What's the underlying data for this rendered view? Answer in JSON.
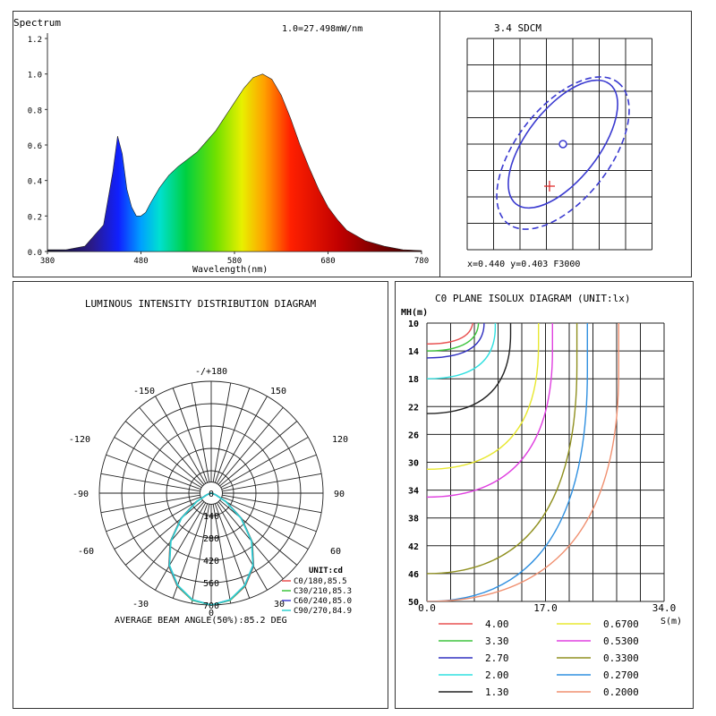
{
  "spectrum": {
    "title": "Spectrum",
    "scale_note": "1.0=27.498mW/nm",
    "xlabel": "Wavelength(nm)",
    "x_ticks": [
      "380",
      "480",
      "580",
      "680",
      "780"
    ],
    "y_ticks": [
      "0.0",
      "0.2",
      "0.4",
      "0.6",
      "0.8",
      "1.0",
      "1.2"
    ]
  },
  "sdcm": {
    "title": "3.4 SDCM",
    "coords": "x=0.440 y=0.403 F3000"
  },
  "polar": {
    "title": "LUMINOUS INTENSITY DISTRIBUTION DIAGRAM",
    "angle_labels": {
      "top": "-/+180",
      "l150": "-150",
      "r150": "150",
      "l120": "-120",
      "r120": "120",
      "l90": "-90",
      "r90": "90",
      "l60": "-60",
      "r60": "60",
      "l30": "-30",
      "r30": "30",
      "bottom": "0"
    },
    "radial_labels": [
      "140",
      "280",
      "420",
      "560",
      "700"
    ],
    "center_label": "0",
    "unit": "UNIT:cd",
    "legend": [
      {
        "label": "C0/180,85.5",
        "color": "#e85050"
      },
      {
        "label": "C30/210,85.3",
        "color": "#3ec43e"
      },
      {
        "label": "C60/240,85.0",
        "color": "#4040d0"
      },
      {
        "label": "C90/270,84.9",
        "color": "#30d0d0"
      }
    ],
    "beam_angle": "AVERAGE BEAM ANGLE(50%):85.2 DEG"
  },
  "isolux": {
    "title": "C0 PLANE ISOLUX DIAGRAM (UNIT:lx)",
    "y_axis_title": "MH(m)",
    "y_ticks": [
      "10",
      "14",
      "18",
      "22",
      "26",
      "30",
      "34",
      "38",
      "42",
      "46",
      "50"
    ],
    "x_ticks": [
      "0.0",
      "17.0",
      "34.0"
    ],
    "x_axis_title": "S(m)",
    "legend": [
      {
        "value": "4.00",
        "color": "#e85050"
      },
      {
        "value": "3.30",
        "color": "#3ec43e"
      },
      {
        "value": "2.70",
        "color": "#3030c0"
      },
      {
        "value": "2.00",
        "color": "#30e0e0"
      },
      {
        "value": "1.30",
        "color": "#222222"
      },
      {
        "value": "0.6700",
        "color": "#e8e830"
      },
      {
        "value": "0.5300",
        "color": "#e040e0"
      },
      {
        "value": "0.3300",
        "color": "#909020"
      },
      {
        "value": "0.2700",
        "color": "#3090e0"
      },
      {
        "value": "0.2000",
        "color": "#f09070"
      }
    ]
  },
  "chart_data": [
    {
      "type": "area",
      "title": "Spectrum",
      "xlabel": "Wavelength(nm)",
      "ylabel": "",
      "xlim": [
        380,
        780
      ],
      "ylim": [
        0,
        1.2
      ],
      "x": [
        380,
        400,
        420,
        440,
        450,
        455,
        460,
        465,
        470,
        475,
        480,
        485,
        490,
        500,
        510,
        520,
        530,
        540,
        550,
        560,
        570,
        580,
        590,
        600,
        610,
        620,
        630,
        640,
        650,
        660,
        670,
        680,
        690,
        700,
        720,
        740,
        760,
        780
      ],
      "y": [
        0.01,
        0.01,
        0.03,
        0.15,
        0.45,
        0.65,
        0.55,
        0.35,
        0.25,
        0.2,
        0.2,
        0.22,
        0.27,
        0.36,
        0.43,
        0.48,
        0.52,
        0.56,
        0.62,
        0.68,
        0.76,
        0.84,
        0.92,
        0.98,
        1.0,
        0.97,
        0.88,
        0.75,
        0.6,
        0.47,
        0.35,
        0.25,
        0.18,
        0.12,
        0.06,
        0.03,
        0.01,
        0.005
      ]
    },
    {
      "type": "scatter",
      "title": "3.4 SDCM",
      "point": {
        "x": 0.44,
        "y": 0.403
      },
      "rating": "F3000",
      "sdcm": 3.4
    },
    {
      "type": "line",
      "title": "LUMINOUS INTENSITY DISTRIBUTION DIAGRAM",
      "unit": "cd",
      "rlim": [
        0,
        700
      ],
      "angles_deg": [
        0,
        10,
        20,
        30,
        40,
        50,
        60,
        70,
        80,
        90
      ],
      "series": [
        {
          "name": "C0/180",
          "beam_angle": 85.5,
          "values": [
            700,
            680,
            620,
            530,
            400,
            250,
            110,
            30,
            5,
            0
          ]
        },
        {
          "name": "C30/210",
          "beam_angle": 85.3,
          "values": [
            700,
            680,
            618,
            528,
            398,
            248,
            108,
            29,
            5,
            0
          ]
        },
        {
          "name": "C60/240",
          "beam_angle": 85.0,
          "values": [
            700,
            678,
            615,
            525,
            395,
            245,
            106,
            28,
            5,
            0
          ]
        },
        {
          "name": "C90/270",
          "beam_angle": 84.9,
          "values": [
            700,
            677,
            613,
            522,
            392,
            243,
            105,
            27,
            5,
            0
          ]
        }
      ]
    },
    {
      "type": "line",
      "title": "C0 PLANE ISOLUX DIAGRAM (UNIT:lx)",
      "xlabel": "S(m)",
      "ylabel": "MH(m)",
      "xlim": [
        0,
        34
      ],
      "ylim": [
        10,
        50
      ],
      "contours": [
        {
          "level": 4.0,
          "edge_s": 6.6,
          "edge_mh": 13
        },
        {
          "level": 3.3,
          "edge_s": 7.4,
          "edge_mh": 14
        },
        {
          "level": 2.7,
          "edge_s": 8.2,
          "edge_mh": 15
        },
        {
          "level": 2.0,
          "edge_s": 9.8,
          "edge_mh": 18
        },
        {
          "level": 1.3,
          "edge_s": 12.0,
          "edge_mh": 23
        },
        {
          "level": 0.67,
          "edge_s": 16.0,
          "edge_mh": 31
        },
        {
          "level": 0.53,
          "edge_s": 18.0,
          "edge_mh": 35
        },
        {
          "level": 0.33,
          "edge_s": 21.5,
          "edge_mh": 46
        },
        {
          "level": 0.27,
          "edge_s": 23.0,
          "edge_mh": 50
        },
        {
          "level": 0.2,
          "edge_s": 27.5,
          "edge_mh": 50
        }
      ]
    }
  ]
}
